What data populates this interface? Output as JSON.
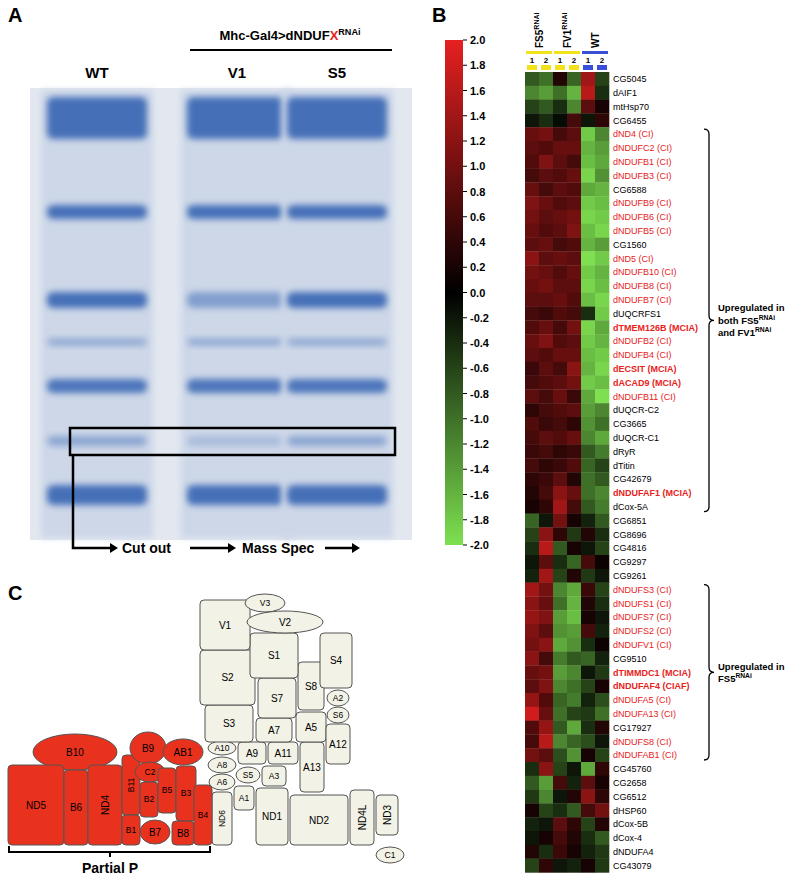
{
  "panel_labels": [
    "A",
    "B",
    "C"
  ],
  "gel": {
    "header": [
      {
        "text": "Mhc-Gal4>dNDUF"
      },
      {
        "text": "X",
        "color": "#e8221c"
      },
      {
        "text": "RNAi",
        "sup": true
      }
    ],
    "lanes": [
      "WT",
      "V1",
      "S5"
    ],
    "steps": [
      "Cut out",
      "Mass Spec"
    ]
  },
  "chart_data": {
    "type": "heatmap",
    "groups": [
      {
        "label": [
          {
            "text": "FS5"
          },
          {
            "text": "RNAi",
            "sup": true
          }
        ],
        "color": "#f2e21a",
        "columns": [
          "1",
          "2"
        ]
      },
      {
        "label": [
          {
            "text": "FV1"
          },
          {
            "text": "RNAi",
            "sup": true
          }
        ],
        "color": "#f2e21a",
        "columns": [
          "1",
          "2"
        ]
      },
      {
        "label": [
          {
            "text": "WT"
          }
        ],
        "color": "#3a4fd8",
        "columns": [
          "1",
          "2"
        ]
      }
    ],
    "rows": [
      "CG5045",
      "dAIF1",
      "mtHsp70",
      "CG6455",
      "dND4 (CI)",
      "dNDUFC2 (CI)",
      "dNDUFB1 (CI)",
      "dNDUFB3 (CI)",
      "CG6588",
      "dNDUFB9 (CI)",
      "dNDUFB6 (CI)",
      "dNDUFB5 (CI)",
      "CG1560",
      "dND5 (CI)",
      "dNDUFB10 (CI)",
      "dNDUFB8 (CI)",
      "dNDUFB7 (CI)",
      "dUQCRFS1",
      "dTMEM126B (MCIA)",
      "dNDUFB2 (CI)",
      "dNDUFB4 (CI)",
      "dECSIT (MCIA)",
      "dACAD9 (MCIA)",
      "dNDUFB11 (CI)",
      "dUQCR-C2",
      "CG3665",
      "dUQCR-C1",
      "dRyR",
      "dTitin",
      "CG42679",
      "dNDUFAF1 (MCIA)",
      "dCox-5A",
      "CG6851",
      "CG8696",
      "CG4816",
      "CG9297",
      "CG9261",
      "dNDUFS3 (CI)",
      "dNDUFS1 (CI)",
      "dNDUFS7 (CI)",
      "dNDUFS2 (CI)",
      "dNDUFV1 (CI)",
      "CG9510",
      "dTIMMDC1 (MCIA)",
      "dNDUFAF4 (CIAF)",
      "dNDUFA5 (CI)",
      "dNDUFA13 (CI)",
      "CG17927",
      "dNDUFS8 (CI)",
      "dNDUFAB1 (CI)",
      "CG45760",
      "CG2658",
      "CG6512",
      "dHSP60",
      "dCox-5B",
      "dCox-4",
      "dNDUFA4",
      "CG43079"
    ],
    "cells": [
      [
        -0.8,
        -1.0,
        0.3,
        -0.9,
        1.4,
        -0.6
      ],
      [
        -1.2,
        -1.4,
        -1.0,
        -1.6,
        1.6,
        -0.4
      ],
      [
        -0.6,
        -0.8,
        -0.4,
        -1.2,
        0.8,
        0.2
      ],
      [
        -0.2,
        -0.4,
        -0.1,
        0.6,
        -0.2,
        0.4
      ],
      [
        0.9,
        1.0,
        0.6,
        0.8,
        -1.8,
        -1.2
      ],
      [
        0.8,
        0.7,
        0.9,
        0.9,
        -1.6,
        -1.4
      ],
      [
        0.7,
        1.1,
        0.8,
        0.6,
        -1.7,
        -1.5
      ],
      [
        0.6,
        0.8,
        0.7,
        0.9,
        -1.9,
        -1.3
      ],
      [
        0.9,
        0.6,
        0.8,
        0.7,
        -1.5,
        -1.6
      ],
      [
        1.1,
        0.9,
        0.7,
        0.8,
        -1.8,
        -1.7
      ],
      [
        1.0,
        0.8,
        0.9,
        1.0,
        -1.9,
        -1.8
      ],
      [
        0.9,
        0.7,
        0.8,
        1.1,
        -1.7,
        -1.9
      ],
      [
        0.8,
        0.9,
        0.6,
        0.7,
        -1.6,
        -1.4
      ],
      [
        1.2,
        0.8,
        0.9,
        0.8,
        -2.0,
        -1.8
      ],
      [
        1.0,
        0.9,
        0.7,
        0.9,
        -1.8,
        -1.6
      ],
      [
        0.9,
        1.0,
        0.8,
        0.8,
        -1.9,
        -1.7
      ],
      [
        0.8,
        0.8,
        0.9,
        0.7,
        -1.7,
        -1.9
      ],
      [
        0.6,
        0.5,
        0.7,
        0.6,
        -0.4,
        -1.8
      ],
      [
        0.7,
        0.9,
        0.6,
        1.0,
        -1.9,
        -1.5
      ],
      [
        0.9,
        1.1,
        0.7,
        0.8,
        -1.8,
        -1.6
      ],
      [
        0.8,
        0.7,
        0.9,
        0.9,
        -1.7,
        -1.8
      ],
      [
        0.5,
        0.8,
        0.6,
        1.2,
        -1.6,
        -1.9
      ],
      [
        0.6,
        0.7,
        0.8,
        1.0,
        -1.8,
        -1.7
      ],
      [
        0.8,
        0.6,
        0.9,
        0.5,
        -1.5,
        -2.0
      ],
      [
        0.4,
        0.6,
        0.7,
        0.8,
        -1.4,
        -1.2
      ],
      [
        0.7,
        0.5,
        0.6,
        0.4,
        -1.3,
        -1.0
      ],
      [
        0.6,
        0.8,
        0.7,
        0.9,
        -1.2,
        -1.5
      ],
      [
        0.5,
        0.6,
        0.4,
        0.5,
        -0.8,
        -1.1
      ],
      [
        0.6,
        0.4,
        0.5,
        0.7,
        -0.9,
        -0.6
      ],
      [
        0.4,
        0.5,
        0.8,
        0.3,
        -1.0,
        -0.8
      ],
      [
        0.3,
        0.6,
        1.2,
        0.9,
        -1.0,
        -1.2
      ],
      [
        0.2,
        0.4,
        1.4,
        0.6,
        -0.8,
        -1.1
      ],
      [
        -0.9,
        -0.2,
        1.0,
        0.2,
        -0.3,
        -0.8
      ],
      [
        -0.6,
        1.2,
        0.4,
        -0.5,
        0.3,
        -0.4
      ],
      [
        -0.4,
        1.6,
        -0.8,
        0.2,
        -0.2,
        -0.6
      ],
      [
        -0.2,
        0.8,
        -0.4,
        -0.9,
        0.6,
        0.1
      ],
      [
        -0.3,
        1.4,
        -0.6,
        0.3,
        -0.5,
        -0.2
      ],
      [
        1.4,
        1.0,
        -1.2,
        -1.5,
        0.5,
        -0.6
      ],
      [
        1.2,
        0.9,
        -1.0,
        -1.6,
        0.3,
        -0.4
      ],
      [
        1.3,
        1.1,
        -1.4,
        -1.7,
        0.2,
        -0.2
      ],
      [
        1.1,
        0.8,
        -1.3,
        -1.4,
        0.6,
        -0.3
      ],
      [
        1.0,
        1.2,
        -1.5,
        -1.3,
        -0.4,
        0.1
      ],
      [
        1.2,
        0.6,
        -1.1,
        -0.8,
        -0.9,
        -0.3
      ],
      [
        0.9,
        1.0,
        -1.4,
        -1.2,
        -0.2,
        -0.5
      ],
      [
        0.8,
        1.1,
        -1.2,
        -1.0,
        -0.6,
        0.2
      ],
      [
        1.3,
        0.7,
        -0.9,
        -1.1,
        -0.3,
        -0.7
      ],
      [
        1.8,
        0.9,
        -1.0,
        -0.6,
        -0.5,
        -1.0
      ],
      [
        0.7,
        1.3,
        -0.8,
        -1.5,
        -0.4,
        0.3
      ],
      [
        0.6,
        1.6,
        -1.2,
        -0.9,
        -0.7,
        -0.2
      ],
      [
        1.0,
        0.8,
        -0.7,
        -1.3,
        0.2,
        -0.6
      ],
      [
        -0.4,
        1.2,
        -0.6,
        -0.2,
        -1.5,
        0.4
      ],
      [
        -0.8,
        -1.4,
        0.6,
        -0.3,
        0.8,
        0.2
      ],
      [
        -0.5,
        -1.2,
        -0.2,
        0.3,
        1.2,
        0.4
      ],
      [
        0.2,
        -0.6,
        -0.4,
        -0.8,
        0.6,
        1.0
      ],
      [
        -0.3,
        -0.2,
        0.8,
        0.4,
        -0.6,
        0.3
      ],
      [
        -0.2,
        0.2,
        0.6,
        0.3,
        -0.4,
        -0.8
      ],
      [
        0.3,
        -0.4,
        0.5,
        0.2,
        -0.3,
        -0.5
      ],
      [
        -0.6,
        0.4,
        -0.2,
        -0.3,
        0.2,
        -0.5
      ]
    ],
    "colors": [
      "#7ee050",
      "#000000",
      "#e62020"
    ],
    "colorbar": {
      "range": [
        -2,
        2
      ],
      "ticks": [
        {
          "value": 2,
          "label": "2.0"
        },
        1.8,
        1.6,
        1.4,
        1.2,
        {
          "value": 1,
          "label": "1.0"
        },
        0.8,
        0.6,
        0.4,
        0.2,
        {
          "value": 0,
          "label": "0.0"
        },
        -0.2,
        -0.4,
        -0.6,
        -0.8,
        {
          "value": -1,
          "label": "-1.0"
        },
        -1.2,
        -1.4,
        -1.6,
        -1.8,
        {
          "value": -2,
          "label": "-2.0"
        }
      ]
    },
    "annotations": [
      {
        "lines": [
          [
            {
              "text": "Upregulated in"
            }
          ],
          [
            {
              "text": "both FS5"
            },
            {
              "text": "RNAi",
              "sup": true
            }
          ],
          [
            {
              "text": "and FV1"
            },
            {
              "text": "RNAi",
              "sup": true
            }
          ]
        ],
        "from": "dND4 (CI)",
        "to": "dCox-5A"
      },
      {
        "lines": [
          [
            {
              "text": "Upregulated in"
            }
          ],
          [
            {
              "text": "FS5"
            },
            {
              "text": "RNAi",
              "sup": true
            }
          ]
        ],
        "from": "dNDUFS3 (CI)",
        "to": "dNDUFAB1 (CI)"
      }
    ]
  },
  "diagram": {
    "subunits": [
      {
        "label": "B10",
        "color": "#e8321e"
      },
      {
        "label": "ND5",
        "color": "#e8321e"
      },
      {
        "label": "B6",
        "color": "#e8321e"
      },
      {
        "label": "ND4",
        "color": "#e8321e"
      },
      {
        "label": "B11",
        "color": "#e8321e"
      },
      {
        "label": "B9",
        "color": "#e8321e"
      },
      {
        "label": "AB1",
        "color": "#e8321e"
      },
      {
        "label": "C2",
        "color": "#e8321e"
      },
      {
        "label": "B2",
        "color": "#e8321e"
      },
      {
        "label": "B1",
        "color": "#e8321e"
      },
      {
        "label": "B5",
        "color": "#e8321e"
      },
      {
        "label": "B3",
        "color": "#e8321e"
      },
      {
        "label": "B7",
        "color": "#e8321e"
      },
      {
        "label": "B8",
        "color": "#e8321e"
      },
      {
        "label": "B4",
        "color": "#e8321e"
      },
      {
        "label": "A10",
        "color": "#f2f2e6"
      },
      {
        "label": "A8",
        "color": "#f2f2e6"
      },
      {
        "label": "A6",
        "color": "#f2f2e6"
      },
      {
        "label": "ND6",
        "color": "#f2f2e6"
      },
      {
        "label": "A9",
        "color": "#f2f2e6"
      },
      {
        "label": "A11",
        "color": "#f2f2e6"
      },
      {
        "label": "S5",
        "color": "#f2f2e6"
      },
      {
        "label": "A3",
        "color": "#f2f2e6"
      },
      {
        "label": "A1",
        "color": "#f2f2e6"
      },
      {
        "label": "ND1",
        "color": "#f2f2e6"
      },
      {
        "label": "A13",
        "color": "#f2f2e6"
      },
      {
        "label": "A7",
        "color": "#f2f2e6"
      },
      {
        "label": "A5",
        "color": "#f2f2e6"
      },
      {
        "label": "A12",
        "color": "#f2f2e6"
      },
      {
        "label": "S3",
        "color": "#f2f2e6"
      },
      {
        "label": "S7",
        "color": "#f2f2e6"
      },
      {
        "label": "S8",
        "color": "#f2f2e6"
      },
      {
        "label": "A2",
        "color": "#f2f2e6"
      },
      {
        "label": "S6",
        "color": "#f2f2e6"
      },
      {
        "label": "S2",
        "color": "#f2f2e6"
      },
      {
        "label": "S1",
        "color": "#f2f2e6"
      },
      {
        "label": "S4",
        "color": "#f2f2e6"
      },
      {
        "label": "V1",
        "color": "#f2f2e6"
      },
      {
        "label": "V2",
        "color": "#f2f2e6"
      },
      {
        "label": "V3",
        "color": "#f2f2e6"
      },
      {
        "label": "ND2",
        "color": "#f2f2e6"
      },
      {
        "label": "ND4L",
        "color": "#f2f2e6"
      },
      {
        "label": "ND3",
        "color": "#f2f2e6"
      },
      {
        "label": "C1",
        "color": "#f2f2e6"
      }
    ],
    "bracket": "Partial P"
  }
}
